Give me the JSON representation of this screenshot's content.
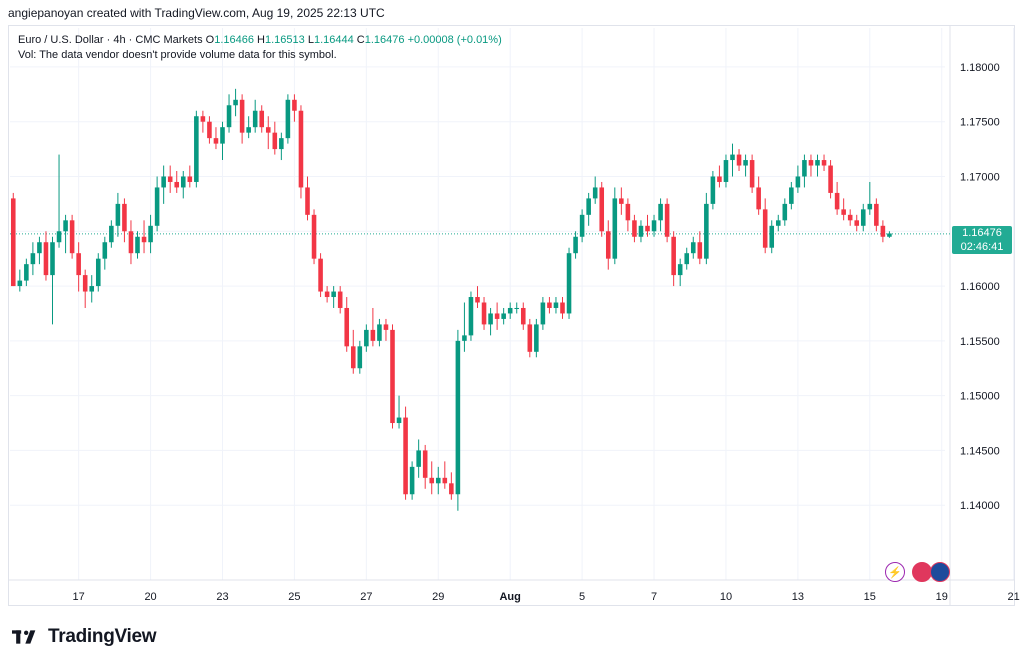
{
  "header": {
    "text": "angiepanoyan created with TradingView.com, Aug 19, 2025 22:13 UTC"
  },
  "legend": {
    "symbol": "Euro / U.S. Dollar · 4h · CMC Markets",
    "o_label": "O",
    "o": "1.16466",
    "h_label": "H",
    "h": "1.16513",
    "l_label": "L",
    "l": "1.16444",
    "c_label": "C",
    "c": "1.16476",
    "change": "+0.00008 (+0.01%)",
    "vol_note": "Vol: The data vendor doesn't provide volume data for this symbol."
  },
  "price_tag": {
    "price": "1.16476",
    "countdown": "02:46:41"
  },
  "footer": {
    "brand": "TradingView"
  },
  "colors": {
    "up": "#089981",
    "down": "#f23645",
    "grid": "#f0f3fa",
    "last_line": "#22ab94"
  },
  "icons": [
    "lightning-icon",
    "us-flag-icon",
    "eu-flag-icon"
  ],
  "chart_data": {
    "type": "candlestick",
    "ylim": [
      1.135,
      1.182
    ],
    "y_ticks": [
      "1.18000",
      "1.17500",
      "1.17000",
      "1.16500",
      "1.16000",
      "1.15500",
      "1.15000",
      "1.14500",
      "1.14000"
    ],
    "y_tick_values": [
      1.18,
      1.175,
      1.17,
      1.165,
      1.16,
      1.155,
      1.15,
      1.145,
      1.14
    ],
    "x_ticks": [
      "17",
      "20",
      "23",
      "25",
      "27",
      "29",
      "Aug",
      "5",
      "7",
      "10",
      "13",
      "15",
      "19",
      "21"
    ],
    "x_tick_bar_index": [
      10,
      21,
      32,
      43,
      54,
      65,
      76,
      87,
      98,
      109,
      120,
      131,
      142,
      153
    ],
    "last_price": 1.16476,
    "ohlc": [
      [
        1.168,
        1.1685,
        1.16,
        1.16
      ],
      [
        1.16,
        1.1615,
        1.1595,
        1.1605
      ],
      [
        1.1605,
        1.1625,
        1.16,
        1.162
      ],
      [
        1.162,
        1.164,
        1.161,
        1.163
      ],
      [
        1.163,
        1.1645,
        1.162,
        1.164
      ],
      [
        1.164,
        1.165,
        1.1605,
        1.161
      ],
      [
        1.161,
        1.1645,
        1.1565,
        1.164
      ],
      [
        1.164,
        1.172,
        1.1635,
        1.165
      ],
      [
        1.165,
        1.1665,
        1.163,
        1.166
      ],
      [
        1.166,
        1.1665,
        1.1625,
        1.163
      ],
      [
        1.163,
        1.164,
        1.1595,
        1.161
      ],
      [
        1.161,
        1.1615,
        1.158,
        1.1595
      ],
      [
        1.1595,
        1.161,
        1.1585,
        1.16
      ],
      [
        1.16,
        1.163,
        1.1595,
        1.1625
      ],
      [
        1.1625,
        1.1645,
        1.1615,
        1.164
      ],
      [
        1.164,
        1.166,
        1.1635,
        1.1655
      ],
      [
        1.1655,
        1.1685,
        1.1645,
        1.1675
      ],
      [
        1.1675,
        1.168,
        1.164,
        1.165
      ],
      [
        1.165,
        1.166,
        1.162,
        1.163
      ],
      [
        1.163,
        1.165,
        1.1625,
        1.1645
      ],
      [
        1.1645,
        1.166,
        1.163,
        1.164
      ],
      [
        1.164,
        1.1665,
        1.163,
        1.1655
      ],
      [
        1.1655,
        1.17,
        1.165,
        1.169
      ],
      [
        1.169,
        1.171,
        1.1675,
        1.17
      ],
      [
        1.17,
        1.171,
        1.1685,
        1.1695
      ],
      [
        1.1695,
        1.1705,
        1.1685,
        1.169
      ],
      [
        1.169,
        1.1705,
        1.168,
        1.17
      ],
      [
        1.17,
        1.171,
        1.169,
        1.1695
      ],
      [
        1.1695,
        1.176,
        1.169,
        1.1755
      ],
      [
        1.1755,
        1.176,
        1.174,
        1.175
      ],
      [
        1.175,
        1.1755,
        1.173,
        1.1735
      ],
      [
        1.1735,
        1.1745,
        1.1725,
        1.173
      ],
      [
        1.173,
        1.175,
        1.1715,
        1.1745
      ],
      [
        1.1745,
        1.1775,
        1.174,
        1.1765
      ],
      [
        1.1765,
        1.178,
        1.1755,
        1.177
      ],
      [
        1.177,
        1.1775,
        1.173,
        1.174
      ],
      [
        1.174,
        1.1755,
        1.1735,
        1.1745
      ],
      [
        1.1745,
        1.177,
        1.174,
        1.176
      ],
      [
        1.176,
        1.1765,
        1.174,
        1.1745
      ],
      [
        1.1745,
        1.1755,
        1.1725,
        1.174
      ],
      [
        1.174,
        1.175,
        1.172,
        1.1725
      ],
      [
        1.1725,
        1.174,
        1.1715,
        1.1735
      ],
      [
        1.1735,
        1.1775,
        1.173,
        1.177
      ],
      [
        1.177,
        1.1775,
        1.175,
        1.176
      ],
      [
        1.176,
        1.1765,
        1.168,
        1.169
      ],
      [
        1.169,
        1.17,
        1.166,
        1.1665
      ],
      [
        1.1665,
        1.167,
        1.162,
        1.1625
      ],
      [
        1.1625,
        1.163,
        1.159,
        1.1595
      ],
      [
        1.1595,
        1.16,
        1.1585,
        1.159
      ],
      [
        1.159,
        1.16,
        1.158,
        1.1595
      ],
      [
        1.1595,
        1.16,
        1.1575,
        1.158
      ],
      [
        1.158,
        1.159,
        1.154,
        1.1545
      ],
      [
        1.1545,
        1.156,
        1.152,
        1.1525
      ],
      [
        1.1525,
        1.155,
        1.152,
        1.1545
      ],
      [
        1.1545,
        1.1565,
        1.154,
        1.156
      ],
      [
        1.156,
        1.158,
        1.1545,
        1.155
      ],
      [
        1.155,
        1.157,
        1.1545,
        1.1565
      ],
      [
        1.1565,
        1.157,
        1.155,
        1.156
      ],
      [
        1.156,
        1.1565,
        1.147,
        1.1475
      ],
      [
        1.1475,
        1.15,
        1.147,
        1.148
      ],
      [
        1.148,
        1.149,
        1.1405,
        1.141
      ],
      [
        1.141,
        1.144,
        1.1405,
        1.1435
      ],
      [
        1.1435,
        1.146,
        1.1425,
        1.145
      ],
      [
        1.145,
        1.1455,
        1.1415,
        1.1425
      ],
      [
        1.1425,
        1.144,
        1.141,
        1.142
      ],
      [
        1.142,
        1.1435,
        1.141,
        1.1425
      ],
      [
        1.1425,
        1.144,
        1.1415,
        1.142
      ],
      [
        1.142,
        1.143,
        1.1405,
        1.141
      ],
      [
        1.141,
        1.156,
        1.1395,
        1.155
      ],
      [
        1.155,
        1.1585,
        1.154,
        1.1555
      ],
      [
        1.1555,
        1.1595,
        1.155,
        1.159
      ],
      [
        1.159,
        1.16,
        1.158,
        1.1585
      ],
      [
        1.1585,
        1.159,
        1.156,
        1.1565
      ],
      [
        1.1565,
        1.158,
        1.1555,
        1.1575
      ],
      [
        1.1575,
        1.1585,
        1.156,
        1.157
      ],
      [
        1.157,
        1.158,
        1.1565,
        1.1575
      ],
      [
        1.1575,
        1.1585,
        1.157,
        1.158
      ],
      [
        1.158,
        1.1585,
        1.1575,
        1.158
      ],
      [
        1.158,
        1.1585,
        1.156,
        1.1565
      ],
      [
        1.1565,
        1.157,
        1.1535,
        1.154
      ],
      [
        1.154,
        1.157,
        1.1535,
        1.1565
      ],
      [
        1.1565,
        1.159,
        1.156,
        1.1585
      ],
      [
        1.1585,
        1.159,
        1.1575,
        1.158
      ],
      [
        1.158,
        1.159,
        1.1575,
        1.1585
      ],
      [
        1.1585,
        1.159,
        1.157,
        1.1575
      ],
      [
        1.1575,
        1.1635,
        1.157,
        1.163
      ],
      [
        1.163,
        1.165,
        1.1625,
        1.1645
      ],
      [
        1.1645,
        1.167,
        1.164,
        1.1665
      ],
      [
        1.1665,
        1.1685,
        1.1655,
        1.168
      ],
      [
        1.168,
        1.17,
        1.1675,
        1.169
      ],
      [
        1.169,
        1.1695,
        1.1645,
        1.165
      ],
      [
        1.165,
        1.166,
        1.1615,
        1.1625
      ],
      [
        1.1625,
        1.169,
        1.162,
        1.168
      ],
      [
        1.168,
        1.169,
        1.1665,
        1.1675
      ],
      [
        1.1675,
        1.168,
        1.165,
        1.166
      ],
      [
        1.166,
        1.1665,
        1.164,
        1.1645
      ],
      [
        1.1645,
        1.166,
        1.164,
        1.1655
      ],
      [
        1.1655,
        1.1665,
        1.1645,
        1.165
      ],
      [
        1.165,
        1.1665,
        1.1645,
        1.166
      ],
      [
        1.166,
        1.168,
        1.165,
        1.1675
      ],
      [
        1.1675,
        1.168,
        1.164,
        1.1645
      ],
      [
        1.1645,
        1.165,
        1.16,
        1.161
      ],
      [
        1.161,
        1.1625,
        1.16,
        1.162
      ],
      [
        1.162,
        1.1635,
        1.1615,
        1.163
      ],
      [
        1.163,
        1.1645,
        1.1625,
        1.164
      ],
      [
        1.164,
        1.165,
        1.162,
        1.1625
      ],
      [
        1.1625,
        1.1685,
        1.162,
        1.1675
      ],
      [
        1.1675,
        1.1705,
        1.167,
        1.17
      ],
      [
        1.17,
        1.171,
        1.169,
        1.1695
      ],
      [
        1.1695,
        1.172,
        1.169,
        1.1715
      ],
      [
        1.1715,
        1.173,
        1.17,
        1.172
      ],
      [
        1.172,
        1.1725,
        1.1705,
        1.171
      ],
      [
        1.171,
        1.172,
        1.17,
        1.1715
      ],
      [
        1.1715,
        1.172,
        1.1685,
        1.169
      ],
      [
        1.169,
        1.17,
        1.1665,
        1.167
      ],
      [
        1.167,
        1.168,
        1.163,
        1.1635
      ],
      [
        1.1635,
        1.166,
        1.163,
        1.1655
      ],
      [
        1.1655,
        1.1665,
        1.165,
        1.166
      ],
      [
        1.166,
        1.168,
        1.1655,
        1.1675
      ],
      [
        1.1675,
        1.1695,
        1.167,
        1.169
      ],
      [
        1.169,
        1.171,
        1.1685,
        1.17
      ],
      [
        1.17,
        1.172,
        1.169,
        1.1715
      ],
      [
        1.1715,
        1.172,
        1.17,
        1.171
      ],
      [
        1.171,
        1.172,
        1.17,
        1.1715
      ],
      [
        1.1715,
        1.172,
        1.1705,
        1.171
      ],
      [
        1.171,
        1.1715,
        1.168,
        1.1685
      ],
      [
        1.1685,
        1.1695,
        1.1665,
        1.167
      ],
      [
        1.167,
        1.168,
        1.166,
        1.1665
      ],
      [
        1.1665,
        1.167,
        1.1655,
        1.166
      ],
      [
        1.166,
        1.1665,
        1.165,
        1.1655
      ],
      [
        1.1655,
        1.1675,
        1.165,
        1.167
      ],
      [
        1.167,
        1.1695,
        1.1665,
        1.1675
      ],
      [
        1.1675,
        1.168,
        1.165,
        1.1655
      ],
      [
        1.1655,
        1.166,
        1.164,
        1.1645
      ],
      [
        1.1645,
        1.165,
        1.1644,
        1.1648
      ]
    ]
  }
}
